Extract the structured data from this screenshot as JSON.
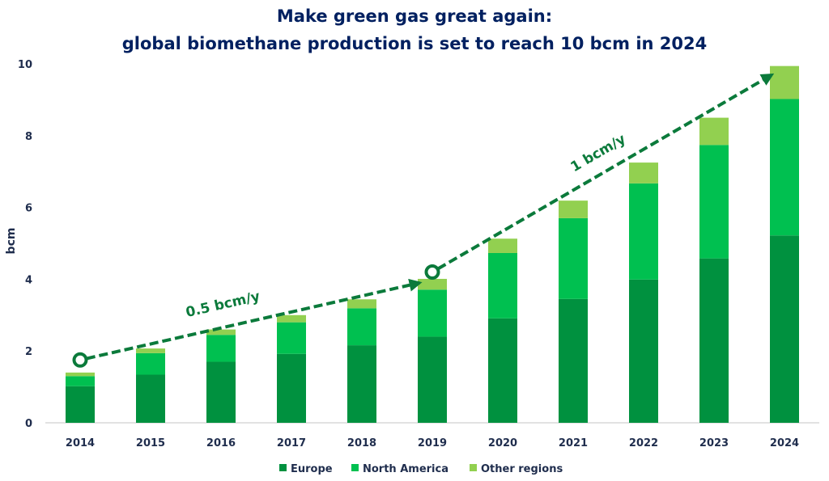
{
  "chart_data": {
    "type": "bar",
    "stacked": true,
    "title": "Make green gas great again:",
    "subtitle": "global biomethane production is set to reach 10 bcm in 2024",
    "xlabel": "",
    "ylabel": "bcm",
    "ylim": [
      0,
      10
    ],
    "yticks": [
      0,
      2,
      4,
      6,
      8,
      10
    ],
    "grid": false,
    "legend_position": "bottom",
    "categories": [
      "2014",
      "2015",
      "2016",
      "2017",
      "2018",
      "2019",
      "2020",
      "2021",
      "2022",
      "2023",
      "2024"
    ],
    "series": [
      {
        "name": "Europe",
        "color": "#00913f",
        "values": [
          1.02,
          1.34,
          1.7,
          1.92,
          2.16,
          2.4,
          2.91,
          3.45,
          3.99,
          4.58,
          5.22
        ]
      },
      {
        "name": "North America",
        "color": "#00c050",
        "values": [
          0.28,
          0.6,
          0.75,
          0.88,
          1.03,
          1.31,
          1.82,
          2.25,
          2.68,
          3.16,
          3.8
        ]
      },
      {
        "name": "Other regions",
        "color": "#92d050",
        "values": [
          0.1,
          0.13,
          0.15,
          0.2,
          0.25,
          0.3,
          0.4,
          0.49,
          0.58,
          0.76,
          0.92
        ]
      }
    ],
    "annotations": [
      {
        "text": "0.5 bcm/y",
        "from": [
          "2014",
          1.75
        ],
        "to": [
          "2019",
          3.98
        ],
        "color": "#0b7a3b"
      },
      {
        "text": "1 bcm/y",
        "from": [
          "2019",
          4.2
        ],
        "to": [
          "2024",
          9.9
        ],
        "color": "#0b7a3b"
      }
    ]
  }
}
